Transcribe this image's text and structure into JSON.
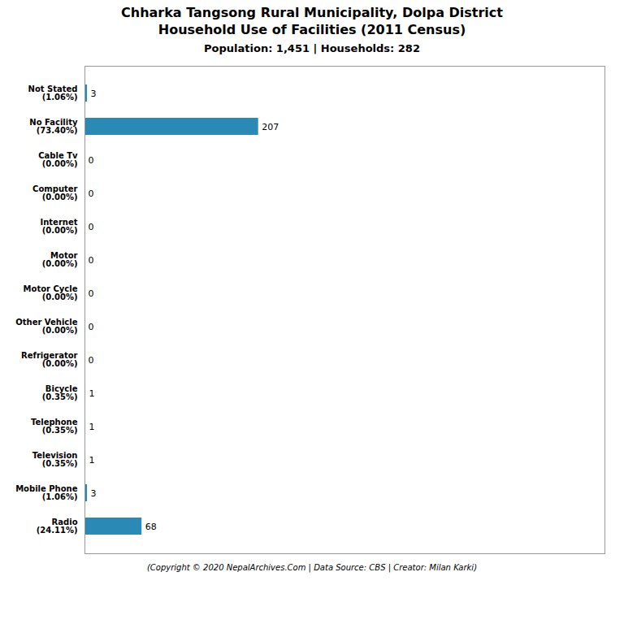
{
  "chart_data": {
    "type": "bar",
    "title": "Chharka Tangsong Rural Municipality, Dolpa District\nHousehold Use of Facilities (2011 Census)",
    "subtitle": "Population: 1,451 | Households: 282",
    "caption": "(Copyright © 2020 NepalArchives.Com | Data Source: CBS | Creator: Milan Karki)",
    "categories": [
      "Not Stated\n(1.06%)",
      "No Facility\n(73.40%)",
      "Cable Tv\n(0.00%)",
      "Computer\n(0.00%)",
      "Internet\n(0.00%)",
      "Motor\n(0.00%)",
      "Motor Cycle\n(0.00%)",
      "Other Vehicle\n(0.00%)",
      "Refrigerator\n(0.00%)",
      "Bicycle\n(0.35%)",
      "Telephone\n(0.35%)",
      "Television\n(0.35%)",
      "Mobile Phone\n(1.06%)",
      "Radio\n(24.11%)"
    ],
    "values": [
      3,
      207,
      0,
      0,
      0,
      0,
      0,
      0,
      0,
      1,
      1,
      1,
      3,
      68
    ],
    "color": "#2b8ab5",
    "orientation": "horizontal",
    "xlim": [
      0,
      620
    ],
    "data_labels": true,
    "tick_labels": "y",
    "grid": false
  }
}
